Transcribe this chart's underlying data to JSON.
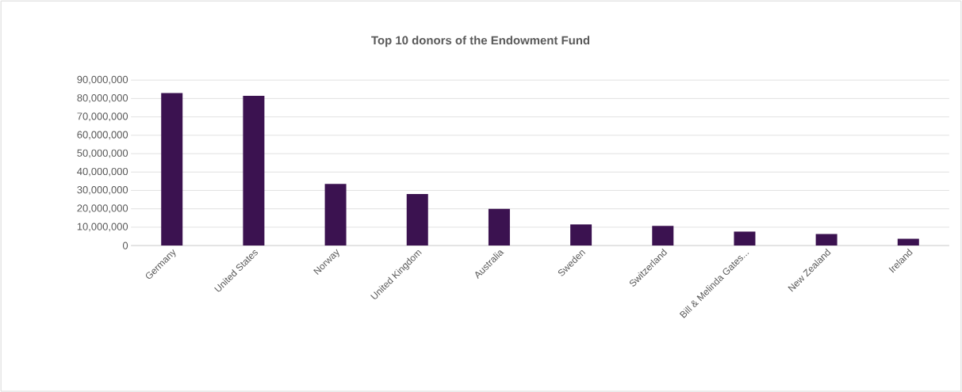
{
  "chart_data": {
    "type": "bar",
    "title": "Top 10 donors of the Endowment Fund",
    "categories": [
      "Germany",
      "United States",
      "Norway",
      "United Kingdom",
      "Australia",
      "Sweden",
      "Switzerland",
      "Bill & Melinda Gates...",
      "New Zealand",
      "Ireland"
    ],
    "values": [
      83000000,
      81500000,
      33500000,
      28000000,
      20000000,
      11500000,
      10700000,
      7600000,
      6300000,
      3700000
    ],
    "color": "#3b1250",
    "ylim": [
      0,
      90000000
    ],
    "yticks": [
      {
        "value": 0,
        "label": "0"
      },
      {
        "value": 10000000,
        "label": "10,000,000"
      },
      {
        "value": 20000000,
        "label": "20,000,000"
      },
      {
        "value": 30000000,
        "label": "30,000,000"
      },
      {
        "value": 40000000,
        "label": "40,000,000"
      },
      {
        "value": 50000000,
        "label": "50,000,000"
      },
      {
        "value": 60000000,
        "label": "60,000,000"
      },
      {
        "value": 70000000,
        "label": "70,000,000"
      },
      {
        "value": 80000000,
        "label": "80,000,000"
      },
      {
        "value": 90000000,
        "label": "90,000,000"
      }
    ],
    "grid": "y"
  }
}
